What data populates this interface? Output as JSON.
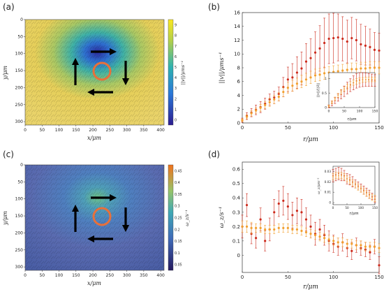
{
  "panels": {
    "a": {
      "label": "(a)",
      "xlabel": "x/μm",
      "ylabel": "y/μm",
      "xticks": [
        "0",
        "50",
        "100",
        "150",
        "200",
        "250",
        "300",
        "350",
        "400"
      ],
      "yticks": [
        "0",
        "50",
        "100",
        "150",
        "200",
        "250",
        "300"
      ],
      "colorbar_label": "||v||/μms⁻¹",
      "colorbar_ticks": [
        "0",
        "1",
        "2",
        "3",
        "4",
        "5",
        "6",
        "7",
        "8",
        "9"
      ],
      "colors": {
        "low": "#2c1c8f",
        "mid": "#2fb2b0",
        "high": "#f9e721",
        "circle": "#e8703a",
        "arrow": "#000000"
      }
    },
    "b": {
      "label": "(b)",
      "xlabel": "r/μm",
      "ylabel": "||v||/μms⁻¹",
      "inset_xlabel": "r/μm",
      "inset_ylabel": "||v||/||v̄||"
    },
    "c": {
      "label": "(c)",
      "xlabel": "x/μm",
      "ylabel": "y/μm",
      "xticks": [
        "0",
        "50",
        "100",
        "150",
        "200",
        "250",
        "300",
        "350",
        "400"
      ],
      "yticks": [
        "0",
        "50",
        "100",
        "150",
        "200",
        "250",
        "300"
      ],
      "colorbar_label": "ω_z/s⁻¹",
      "colorbar_ticks": [
        "0.05",
        "0.1",
        "0.15",
        "0.2",
        "0.25",
        "0.3",
        "0.35",
        "0.4",
        "0.45"
      ],
      "colors": {
        "low": "#25195e",
        "mid": "#3fa8b5",
        "high": "#f0721c",
        "circle": "#e8703a",
        "arrow": "#000000"
      }
    },
    "d": {
      "label": "(d)",
      "xlabel": "r/μm",
      "ylabel": "ω_z/s⁻¹",
      "inset_xlabel": "r/μm",
      "inset_ylabel": "ω_z/μm⁻¹"
    }
  },
  "chart_data": [
    {
      "type": "scatter",
      "panel": "b",
      "xlim": [
        0,
        150
      ],
      "ylim": [
        0,
        16
      ],
      "xticks": [
        0,
        50,
        100,
        150
      ],
      "yticks": [
        0,
        2,
        4,
        6,
        8,
        10,
        12,
        14,
        16
      ],
      "series": [
        {
          "color": "#cc2a1c",
          "x": [
            0,
            5,
            10,
            15,
            20,
            25,
            30,
            35,
            40,
            45,
            50,
            55,
            60,
            65,
            70,
            75,
            80,
            85,
            90,
            95,
            100,
            105,
            110,
            115,
            120,
            125,
            130,
            135,
            140,
            145,
            150
          ],
          "y": [
            0.4,
            1.0,
            1.5,
            1.9,
            2.3,
            2.8,
            3.4,
            3.7,
            4.2,
            5.2,
            6.3,
            6.6,
            7.3,
            7.9,
            8.9,
            9.4,
            10.2,
            10.8,
            11.6,
            12.2,
            12.3,
            12.4,
            12.2,
            11.8,
            12.3,
            12.0,
            11.4,
            11.2,
            11.0,
            10.6,
            10.5
          ],
          "err": [
            0.3,
            0.5,
            0.6,
            0.7,
            0.8,
            0.8,
            0.8,
            0.9,
            1.0,
            1.4,
            1.8,
            2.0,
            2.3,
            2.4,
            2.6,
            2.8,
            3.0,
            3.3,
            3.6,
            3.6,
            3.6,
            3.4,
            3.2,
            3.1,
            3.0,
            3.0,
            2.9,
            2.8,
            2.6,
            2.5,
            2.5
          ]
        },
        {
          "color": "#f2a030",
          "x": [
            0,
            5,
            10,
            15,
            20,
            25,
            30,
            35,
            40,
            45,
            50,
            55,
            60,
            65,
            70,
            75,
            80,
            85,
            90,
            95,
            100,
            105,
            110,
            115,
            120,
            125,
            130,
            135,
            140,
            145,
            150
          ],
          "y": [
            0.4,
            0.9,
            1.4,
            1.8,
            2.2,
            2.6,
            3.0,
            3.4,
            3.8,
            4.5,
            5.1,
            5.4,
            5.7,
            6.0,
            6.3,
            6.6,
            6.9,
            7.0,
            7.2,
            7.3,
            7.4,
            7.5,
            7.6,
            7.7,
            7.8,
            7.8,
            7.9,
            7.9,
            8.0,
            8.0,
            8.0
          ],
          "err": [
            0.2,
            0.3,
            0.4,
            0.4,
            0.5,
            0.5,
            0.6,
            0.6,
            0.6,
            0.7,
            0.8,
            0.8,
            0.8,
            0.9,
            0.9,
            0.9,
            0.9,
            0.9,
            0.9,
            0.9,
            0.9,
            0.9,
            0.9,
            0.9,
            0.9,
            0.9,
            0.9,
            0.9,
            0.9,
            0.9,
            0.9
          ]
        }
      ],
      "inset": {
        "xlim": [
          0,
          150
        ],
        "ylim": [
          0,
          1.2
        ],
        "xticks": [
          0,
          50,
          100,
          150
        ],
        "yticks": [
          0,
          0.5,
          1
        ],
        "series": [
          {
            "color": "#cc2a1c",
            "x": [
              0,
              10,
              20,
              30,
              40,
              50,
              60,
              70,
              80,
              90,
              100,
              110,
              120,
              130,
              140,
              150
            ],
            "y": [
              0.04,
              0.14,
              0.24,
              0.34,
              0.45,
              0.56,
              0.67,
              0.77,
              0.85,
              0.92,
              0.95,
              0.96,
              0.96,
              0.95,
              0.94,
              0.93
            ],
            "err": [
              0.05,
              0.08,
              0.1,
              0.12,
              0.15,
              0.18,
              0.2,
              0.22,
              0.24,
              0.25,
              0.25,
              0.24,
              0.23,
              0.22,
              0.21,
              0.2
            ]
          },
          {
            "color": "#f2a030",
            "x": [
              0,
              10,
              20,
              30,
              40,
              50,
              60,
              70,
              80,
              90,
              100,
              110,
              120,
              130,
              140,
              150
            ],
            "y": [
              0.05,
              0.18,
              0.3,
              0.42,
              0.54,
              0.64,
              0.72,
              0.8,
              0.86,
              0.9,
              0.93,
              0.95,
              0.96,
              0.97,
              0.97,
              0.97
            ],
            "err": [
              0.03,
              0.05,
              0.06,
              0.07,
              0.08,
              0.08,
              0.09,
              0.09,
              0.09,
              0.09,
              0.09,
              0.08,
              0.08,
              0.08,
              0.08,
              0.08
            ]
          }
        ]
      }
    },
    {
      "type": "scatter",
      "panel": "d",
      "xlim": [
        0,
        150
      ],
      "ylim": [
        -0.12,
        0.65
      ],
      "xticks": [
        0,
        50,
        100,
        150
      ],
      "yticks": [
        0,
        0.1,
        0.2,
        0.3,
        0.4,
        0.5,
        0.6
      ],
      "series": [
        {
          "color": "#cc2a1c",
          "x": [
            0,
            5,
            10,
            15,
            20,
            25,
            30,
            35,
            40,
            45,
            50,
            55,
            60,
            65,
            70,
            75,
            80,
            85,
            90,
            95,
            100,
            105,
            110,
            115,
            120,
            125,
            130,
            135,
            140,
            145,
            150
          ],
          "y": [
            0.2,
            0.35,
            0.15,
            0.12,
            0.25,
            0.1,
            0.18,
            0.3,
            0.36,
            0.38,
            0.34,
            0.28,
            0.31,
            0.3,
            0.25,
            0.2,
            0.15,
            0.18,
            0.14,
            0.1,
            0.08,
            0.06,
            0.09,
            0.05,
            0.03,
            0.07,
            0.05,
            0.04,
            0.02,
            0.06,
            -0.07
          ],
          "err": [
            0.08,
            0.08,
            0.07,
            0.07,
            0.08,
            0.07,
            0.08,
            0.09,
            0.09,
            0.1,
            0.09,
            0.09,
            0.09,
            0.09,
            0.08,
            0.08,
            0.08,
            0.07,
            0.07,
            0.07,
            0.06,
            0.06,
            0.06,
            0.06,
            0.06,
            0.05,
            0.05,
            0.05,
            0.05,
            0.05,
            0.06
          ]
        },
        {
          "color": "#f2a030",
          "x": [
            0,
            5,
            10,
            15,
            20,
            25,
            30,
            35,
            40,
            45,
            50,
            55,
            60,
            65,
            70,
            75,
            80,
            85,
            90,
            95,
            100,
            105,
            110,
            115,
            120,
            125,
            130,
            135,
            140,
            145,
            150
          ],
          "y": [
            0.2,
            0.2,
            0.19,
            0.19,
            0.19,
            0.18,
            0.18,
            0.18,
            0.19,
            0.19,
            0.19,
            0.18,
            0.18,
            0.17,
            0.16,
            0.15,
            0.14,
            0.13,
            0.12,
            0.11,
            0.1,
            0.09,
            0.09,
            0.08,
            0.08,
            0.07,
            0.07,
            0.06,
            0.06,
            0.06,
            0.05
          ],
          "err": [
            0.04,
            0.04,
            0.04,
            0.03,
            0.03,
            0.03,
            0.03,
            0.03,
            0.03,
            0.03,
            0.03,
            0.03,
            0.03,
            0.03,
            0.03,
            0.03,
            0.03,
            0.03,
            0.03,
            0.03,
            0.03,
            0.03,
            0.03,
            0.03,
            0.03,
            0.03,
            0.03,
            0.03,
            0.03,
            0.03,
            0.03
          ]
        }
      ],
      "inset": {
        "xlim": [
          0,
          150
        ],
        "ylim": [
          -0.002,
          0.035
        ],
        "xticks": [
          0,
          50,
          100,
          150
        ],
        "yticks": [
          0,
          0.01,
          0.02,
          0.03
        ],
        "series": [
          {
            "color": "#cc2a1c",
            "x": [
              0,
              10,
              20,
              30,
              40,
              50,
              60,
              70,
              80,
              90,
              100,
              110,
              120,
              130,
              140,
              150
            ],
            "y": [
              0.026,
              0.027,
              0.028,
              0.027,
              0.026,
              0.023,
              0.022,
              0.02,
              0.018,
              0.016,
              0.014,
              0.012,
              0.01,
              0.008,
              0.006,
              0.003
            ],
            "err": [
              0.006,
              0.006,
              0.006,
              0.006,
              0.005,
              0.005,
              0.005,
              0.005,
              0.004,
              0.004,
              0.004,
              0.004,
              0.004,
              0.004,
              0.003,
              0.003
            ]
          },
          {
            "color": "#f2a030",
            "x": [
              0,
              10,
              20,
              30,
              40,
              50,
              60,
              70,
              80,
              90,
              100,
              110,
              120,
              130,
              140,
              150
            ],
            "y": [
              0.025,
              0.026,
              0.026,
              0.026,
              0.025,
              0.023,
              0.021,
              0.019,
              0.017,
              0.015,
              0.013,
              0.011,
              0.009,
              0.007,
              0.005,
              0.004
            ],
            "err": [
              0.003,
              0.003,
              0.003,
              0.003,
              0.003,
              0.003,
              0.003,
              0.003,
              0.003,
              0.003,
              0.003,
              0.003,
              0.003,
              0.003,
              0.003,
              0.003
            ]
          }
        ]
      }
    }
  ]
}
